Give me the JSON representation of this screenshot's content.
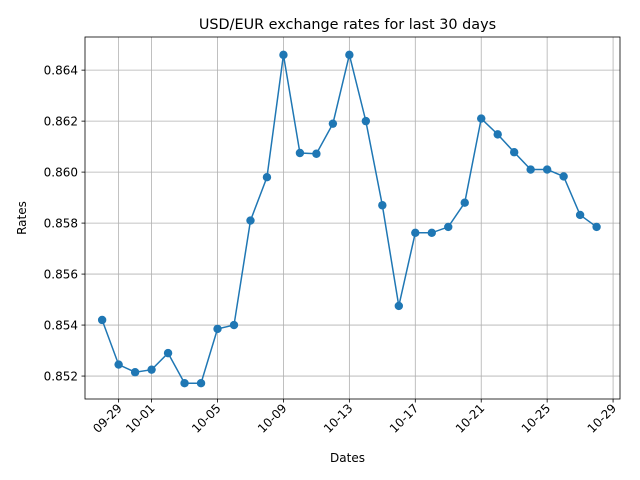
{
  "chart_data": {
    "type": "line",
    "title": "USD/EUR exchange rates for last 30 days",
    "xlabel": "Dates",
    "ylabel": "Rates",
    "x_ticks": [
      "09-29",
      "10-01",
      "10-05",
      "10-09",
      "10-13",
      "10-17",
      "10-21",
      "10-25",
      "10-29"
    ],
    "y_ticks": [
      "0.852",
      "0.854",
      "0.856",
      "0.858",
      "0.860",
      "0.862",
      "0.864"
    ],
    "ylim": [
      0.8511,
      0.8653
    ],
    "xlim": [
      "09-27",
      "10-29"
    ],
    "grid": true,
    "color": "#1f77b4",
    "series": [
      {
        "x": [
          "09-28",
          "09-29",
          "09-30",
          "10-01",
          "10-02",
          "10-03",
          "10-04",
          "10-05",
          "10-06",
          "10-07",
          "10-08",
          "10-09",
          "10-10",
          "10-11",
          "10-12",
          "10-13",
          "10-14",
          "10-15",
          "10-16",
          "10-17",
          "10-18",
          "10-19",
          "10-20",
          "10-21",
          "10-22",
          "10-23",
          "10-24",
          "10-25",
          "10-26",
          "10-27",
          "10-28"
        ],
        "values": [
          0.8542,
          0.85245,
          0.85215,
          0.85225,
          0.8529,
          0.85172,
          0.85172,
          0.85385,
          0.854,
          0.8581,
          0.8598,
          0.8646,
          0.86075,
          0.86072,
          0.8619,
          0.8646,
          0.862,
          0.8587,
          0.85475,
          0.85762,
          0.85762,
          0.85785,
          0.8588,
          0.8621,
          0.86148,
          0.86078,
          0.8601,
          0.8601,
          0.85983,
          0.85832,
          0.85785
        ]
      }
    ]
  }
}
